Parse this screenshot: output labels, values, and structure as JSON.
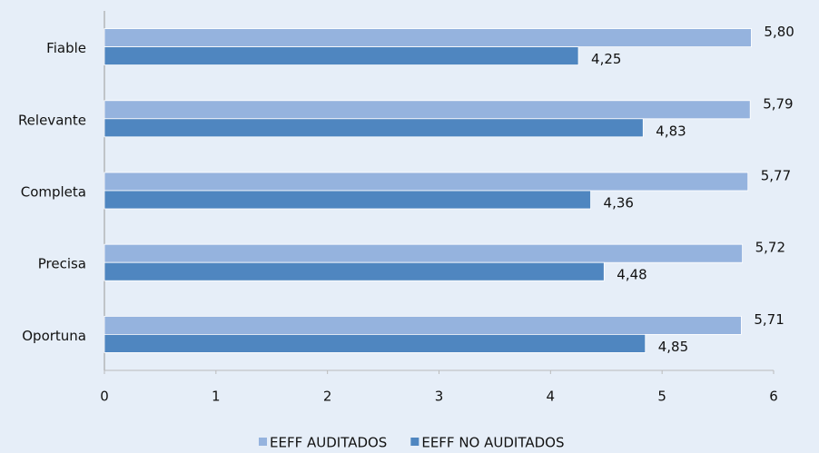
{
  "chart_data": {
    "type": "hbar",
    "categories": [
      "Fiable",
      "Relevante",
      "Completa",
      "Precisa",
      "Oportuna"
    ],
    "series": [
      {
        "name": "EEFF AUDITADOS",
        "color": "#95b3de",
        "values": [
          5.8,
          5.79,
          5.77,
          5.72,
          5.71
        ],
        "value_labels": [
          "5,80",
          "5,79",
          "5,77",
          "5,72",
          "5,71"
        ]
      },
      {
        "name": "EEFF NO AUDITADOS",
        "color": "#4f86c0",
        "values": [
          4.25,
          4.83,
          4.36,
          4.48,
          4.85
        ],
        "value_labels": [
          "4,25",
          "4,83",
          "4,36",
          "4,48",
          "4,85"
        ]
      }
    ],
    "xlim": [
      0,
      6
    ],
    "xticks": [
      0,
      1,
      2,
      3,
      4,
      5,
      6
    ]
  }
}
